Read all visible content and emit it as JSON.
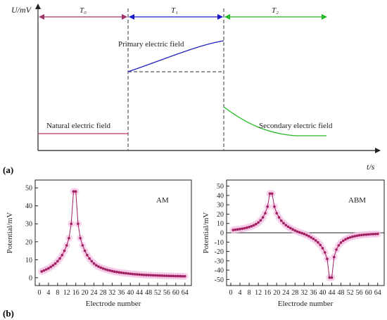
{
  "panel_a": {
    "label": "(a)",
    "y_axis_label": "U/mV",
    "x_axis_label": "t/s",
    "periods": [
      {
        "label": "T₀",
        "color": "#a0306a"
      },
      {
        "label": "T₁",
        "color": "#1a1acc"
      },
      {
        "label": "T₂",
        "color": "#22bb22"
      }
    ],
    "annotations": {
      "primary": "Primary electric field",
      "natural": "Natural electric field",
      "secondary": "Secondary electric field"
    },
    "colors": {
      "natural": "#c0306a",
      "primary": "#2020bb",
      "secondary": "#22bb22"
    }
  },
  "panel_b": {
    "label": "(b)"
  },
  "chart_data": [
    {
      "type": "line",
      "panel": "b-left",
      "title": "AM",
      "xlabel": "Electrode number",
      "ylabel": "Potential/mV",
      "xlim": [
        0,
        65
      ],
      "ylim": [
        -2,
        52
      ],
      "xticks": [
        "0",
        "4",
        "8",
        "12",
        "16",
        "20",
        "24",
        "28",
        "32",
        "36",
        "40",
        "44",
        "48",
        "52",
        "56",
        "60",
        "64"
      ],
      "yticks": [
        "0",
        "10",
        "20",
        "30",
        "40",
        "50"
      ],
      "series": [
        {
          "color": "#a02060",
          "x": [
            1,
            2,
            3,
            4,
            5,
            6,
            7,
            8,
            9,
            10,
            11,
            12,
            13,
            14,
            15,
            16,
            17,
            18,
            19,
            20,
            21,
            22,
            23,
            24,
            25,
            26,
            27,
            28,
            29,
            30,
            31,
            32,
            33,
            34,
            35,
            36,
            37,
            38,
            39,
            40,
            41,
            42,
            43,
            44,
            45,
            46,
            47,
            48,
            49,
            50,
            51,
            52,
            53,
            54,
            55,
            56,
            57,
            58,
            59,
            60,
            61,
            62,
            63,
            64
          ],
          "y": [
            3.5,
            4,
            4.6,
            5.2,
            6,
            6.9,
            7.9,
            9.2,
            10.7,
            12.6,
            15,
            18,
            22,
            30,
            48,
            48,
            30,
            22,
            18,
            15,
            12.6,
            10.7,
            9.2,
            7.9,
            6.9,
            6.2,
            5.6,
            5.1,
            4.7,
            4.3,
            4,
            3.7,
            3.4,
            3.2,
            3,
            2.8,
            2.65,
            2.5,
            2.35,
            2.2,
            2.05,
            1.95,
            1.85,
            1.75,
            1.65,
            1.55,
            1.5,
            1.45,
            1.4,
            1.35,
            1.3,
            1.25,
            1.2,
            1.15,
            1.1,
            1.05,
            1,
            1,
            0.95,
            0.9,
            0.9,
            0.85,
            0.8,
            0.8
          ]
        }
      ]
    },
    {
      "type": "line",
      "panel": "b-right",
      "title": "ABM",
      "xlabel": "Electrode number",
      "ylabel": "Potential/mV",
      "xlim": [
        0,
        65
      ],
      "ylim": [
        -52,
        52
      ],
      "xticks": [
        "0",
        "4",
        "8",
        "12",
        "16",
        "20",
        "24",
        "28",
        "32",
        "36",
        "40",
        "44",
        "48",
        "52",
        "56",
        "60",
        "64"
      ],
      "yticks": [
        "50",
        "40",
        "30",
        "20",
        "10",
        "0",
        "-10",
        "-20",
        "-30",
        "-40",
        "-50"
      ],
      "series": [
        {
          "color": "#a02060",
          "x": [
            1,
            2,
            3,
            4,
            5,
            6,
            7,
            8,
            9,
            10,
            11,
            12,
            13,
            14,
            15,
            16,
            17,
            18,
            19,
            20,
            21,
            22,
            23,
            24,
            25,
            26,
            27,
            28,
            29,
            30,
            31,
            32,
            33,
            34,
            35,
            36,
            37,
            38,
            39,
            40,
            41,
            42,
            43,
            44,
            45,
            46,
            47,
            48,
            49,
            50,
            51,
            52,
            53,
            54,
            55,
            56,
            57,
            58,
            59,
            60,
            61,
            62,
            63,
            64
          ],
          "y": [
            3,
            3.3,
            3.6,
            4,
            4.4,
            4.9,
            5.5,
            6.2,
            7,
            8,
            9.3,
            11,
            13.3,
            16.5,
            21,
            28,
            42,
            42,
            28,
            21,
            16.5,
            13,
            10.3,
            8.2,
            6.5,
            5,
            3.6,
            2.4,
            1.3,
            0.4,
            -0.4,
            -1.3,
            -2.4,
            -3.6,
            -5,
            -6.5,
            -8.2,
            -10.3,
            -13,
            -16.5,
            -21,
            -28,
            -48,
            -48,
            -26,
            -18,
            -13.5,
            -10.5,
            -8.5,
            -7,
            -5.8,
            -4.9,
            -4.2,
            -3.6,
            -3.1,
            -2.7,
            -2.4,
            -2.1,
            -1.9,
            -1.7,
            -1.5,
            -1.4,
            -1.3,
            -1.2
          ]
        }
      ]
    }
  ]
}
